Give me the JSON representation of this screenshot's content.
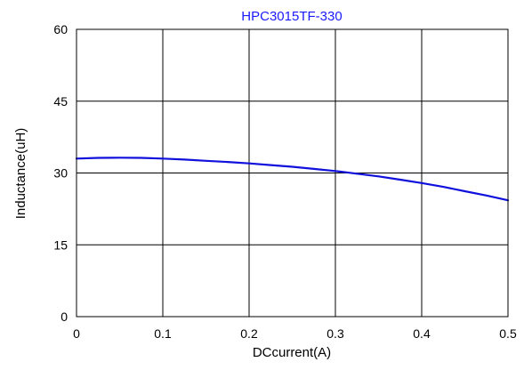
{
  "chart_data": {
    "type": "line",
    "title": "HPC3015TF-330",
    "xlabel": "DCcurrent(A)",
    "ylabel": "Inductance(uH)",
    "xlim": [
      0,
      0.5
    ],
    "ylim": [
      0,
      60
    ],
    "x_ticks": [
      "0",
      "0.1",
      "0.2",
      "0.3",
      "0.4",
      "0.5"
    ],
    "y_ticks": [
      "0",
      "15",
      "30",
      "45",
      "60"
    ],
    "grid": true,
    "colors": {
      "title": "#1a1aff",
      "line": "#1010dd",
      "grid": "#000000",
      "text": "#000000"
    },
    "series": [
      {
        "x": [
          0,
          0.025,
          0.05,
          0.075,
          0.1,
          0.125,
          0.15,
          0.175,
          0.2,
          0.225,
          0.25,
          0.275,
          0.3,
          0.325,
          0.35,
          0.375,
          0.4,
          0.425,
          0.45,
          0.475,
          0.5
        ],
        "y": [
          33.0,
          33.15,
          33.2,
          33.15,
          33.0,
          32.8,
          32.55,
          32.3,
          32.0,
          31.65,
          31.3,
          30.85,
          30.4,
          29.85,
          29.3,
          28.6,
          27.9,
          27.1,
          26.2,
          25.3,
          24.3
        ]
      }
    ]
  }
}
